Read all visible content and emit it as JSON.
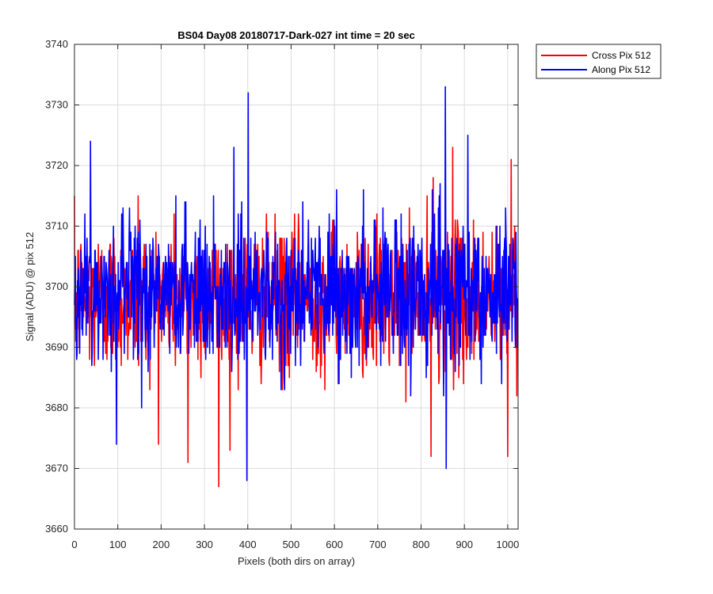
{
  "chart_data": {
    "type": "line",
    "title": "BS04 Day08 20180717-Dark-027 int time = 20 sec",
    "xlabel": "Pixels (both dirs on array)",
    "ylabel": "Signal (ADU) @ pix 512",
    "xlim": [
      0,
      1024
    ],
    "ylim": [
      3660,
      3740
    ],
    "xticks": [
      0,
      100,
      200,
      300,
      400,
      500,
      600,
      700,
      800,
      900,
      1000
    ],
    "yticks": [
      3660,
      3670,
      3680,
      3690,
      3700,
      3710,
      3720,
      3730,
      3740
    ],
    "grid": true,
    "legend_position": "outside-top-right",
    "series": [
      {
        "name": "Cross Pix 512",
        "color": "#ff0000",
        "mean": 3698,
        "noise_amplitude": 6,
        "n_points": 1024,
        "annotated_points": [
          [
            333,
            3667
          ],
          [
            262,
            3671
          ],
          [
            823,
            3672
          ],
          [
            1000,
            3672
          ],
          [
            147,
            3715
          ],
          [
            828,
            3718
          ],
          [
            1008,
            3721
          ],
          [
            873,
            3723
          ]
        ]
      },
      {
        "name": "Along Pix 512",
        "color": "#0000ff",
        "mean": 3699,
        "noise_amplitude": 6,
        "n_points": 1024,
        "annotated_points": [
          [
            401,
            3732
          ],
          [
            856,
            3733
          ],
          [
            37,
            3724
          ],
          [
            908,
            3725
          ],
          [
            398,
            3668
          ],
          [
            858,
            3670
          ],
          [
            97,
            3674
          ],
          [
            368,
            3723
          ]
        ]
      }
    ]
  }
}
